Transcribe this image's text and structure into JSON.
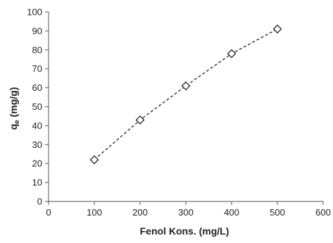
{
  "chart_data": {
    "type": "scatter",
    "title": "",
    "xlabel": "Fenol Kons. (mg/L)",
    "ylabel_main": "q",
    "ylabel_sub": "e",
    "ylabel_rest": " (mg/g)",
    "xlim": [
      0,
      600
    ],
    "ylim": [
      0,
      100
    ],
    "xticks": [
      0,
      100,
      200,
      300,
      400,
      500,
      600
    ],
    "yticks": [
      0,
      10,
      20,
      30,
      40,
      50,
      60,
      70,
      80,
      90,
      100
    ],
    "grid": false,
    "legend": "none",
    "marker": "diamond-open",
    "line_style": "dashed",
    "series": [
      {
        "x": [
          100,
          200,
          300,
          400,
          500
        ],
        "y": [
          22,
          43,
          61,
          78,
          91
        ]
      }
    ],
    "colors": {
      "axis": "#555555",
      "marker": "#222222",
      "line": "#222222"
    }
  }
}
